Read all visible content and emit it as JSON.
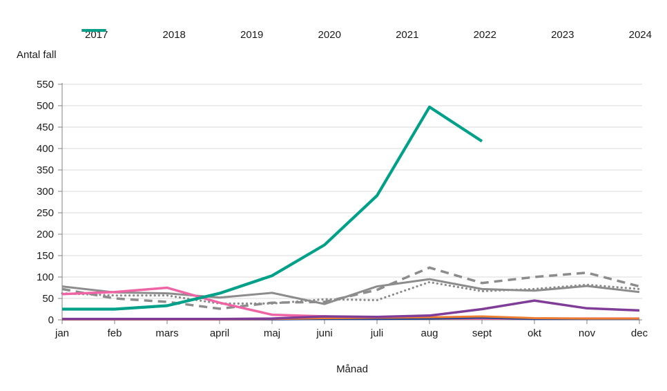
{
  "page": {
    "background": "#ffffff"
  },
  "labels": {
    "y_axis_title": "Antal fall",
    "x_axis_title": "Månad"
  },
  "style": {
    "gridline_color": "#d9d9d9",
    "axis_color": "#808080",
    "text_color": "#1a1a1a"
  },
  "chart_data": {
    "type": "line",
    "title": "",
    "ylabel": "Antal fall",
    "xlabel": "Månad",
    "ylim": [
      0,
      550
    ],
    "yticks": [
      0,
      50,
      100,
      150,
      200,
      250,
      300,
      350,
      400,
      450,
      500,
      550
    ],
    "grid": "horizontal",
    "legend_position": "top",
    "categories": [
      "jan",
      "feb",
      "mars",
      "april",
      "maj",
      "juni",
      "juli",
      "aug",
      "sept",
      "okt",
      "nov",
      "dec"
    ],
    "series": [
      {
        "name": "2017",
        "color": "#8c8c8c",
        "style": "solid",
        "width": 3,
        "values": [
          78,
          64,
          62,
          52,
          63,
          37,
          78,
          95,
          72,
          68,
          79,
          65
        ]
      },
      {
        "name": "2018",
        "color": "#8c8c8c",
        "style": "dotted",
        "width": 3.2,
        "values": [
          62,
          57,
          57,
          38,
          38,
          48,
          46,
          88,
          67,
          72,
          82,
          72
        ]
      },
      {
        "name": "2019",
        "color": "#8c8c8c",
        "style": "dashed",
        "width": 3.5,
        "values": [
          72,
          50,
          42,
          26,
          40,
          42,
          70,
          122,
          86,
          100,
          110,
          78
        ]
      },
      {
        "name": "2020",
        "color": "#ee64a4",
        "style": "solid",
        "width": 3.5,
        "values": [
          60,
          65,
          75,
          40,
          12,
          8,
          5,
          4,
          3,
          3,
          3,
          3
        ]
      },
      {
        "name": "2021",
        "color": "#1e4194",
        "style": "solid",
        "width": 3,
        "values": [
          1,
          1,
          1,
          1,
          1,
          2,
          2,
          3,
          5,
          2,
          2,
          2
        ]
      },
      {
        "name": "2022",
        "color": "#ed7d31",
        "style": "solid",
        "width": 3,
        "values": [
          1,
          1,
          1,
          1,
          2,
          4,
          5,
          6,
          8,
          4,
          3,
          3
        ]
      },
      {
        "name": "2023",
        "color": "#803d98",
        "style": "solid",
        "width": 3.5,
        "values": [
          2,
          2,
          2,
          2,
          3,
          8,
          7,
          10,
          25,
          45,
          27,
          22
        ]
      },
      {
        "name": "2024",
        "color": "#00a188",
        "style": "solid",
        "width": 4.2,
        "values": [
          25,
          25,
          33,
          62,
          103,
          175,
          290,
          497,
          417,
          null,
          null,
          null
        ]
      }
    ]
  }
}
